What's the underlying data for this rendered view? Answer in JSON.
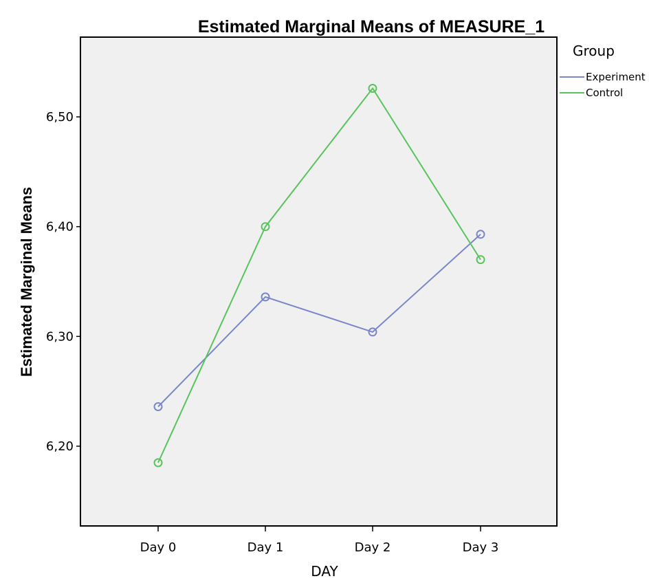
{
  "chart_data": {
    "type": "line",
    "title": "Estimated Marginal Means of MEASURE_1",
    "xlabel": "DAY",
    "ylabel": "Estimated Marginal Means",
    "categories": [
      "Day 0",
      "Day 1",
      "Day 2",
      "Day 3"
    ],
    "ylim": [
      6.125,
      6.57
    ],
    "yticks": [
      6.2,
      6.3,
      6.4,
      6.5
    ],
    "ytick_labels": [
      "6,20",
      "6,30",
      "6,40",
      "6,50"
    ],
    "legend_title": "Group",
    "legend_position": "top-right, outside plot",
    "series": [
      {
        "name": "Experiment",
        "color": "#7a86c9",
        "values": [
          6.236,
          6.336,
          6.304,
          6.393
        ]
      },
      {
        "name": "Control",
        "color": "#58c45c",
        "values": [
          6.185,
          6.4,
          6.526,
          6.37
        ]
      }
    ],
    "plot_background": "#f0f0f0",
    "grid": false
  }
}
